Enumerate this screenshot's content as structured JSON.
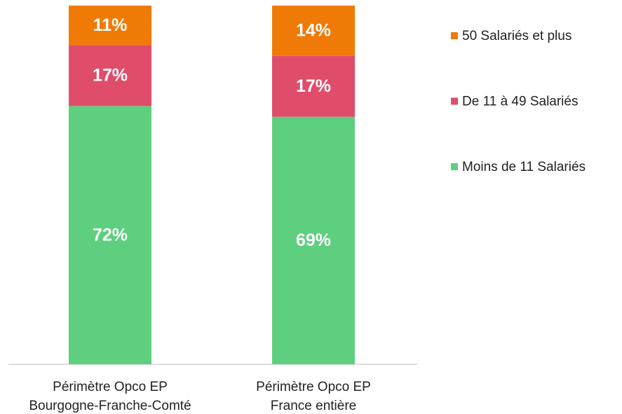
{
  "chart_data": {
    "type": "stacked_bar",
    "categories": [
      [
        "Périmètre Opco EP",
        "Bourgogne-Franche-Comté"
      ],
      [
        "Périmètre Opco EP",
        "France entière"
      ]
    ],
    "series": [
      {
        "name": "Moins de 11 Salariés",
        "color": "#5ecf7e",
        "values": [
          72,
          69
        ],
        "value_labels": [
          "72%",
          "69%"
        ]
      },
      {
        "name": "De 11 à 49 Salariés",
        "color": "#e04d6b",
        "values": [
          17,
          17
        ],
        "value_labels": [
          "17%",
          "17%"
        ]
      },
      {
        "name": "50 Salariés et plus",
        "color": "#f07a06",
        "values": [
          11,
          14
        ],
        "value_labels": [
          "11%",
          "14%"
        ]
      }
    ],
    "legend": "right"
  }
}
